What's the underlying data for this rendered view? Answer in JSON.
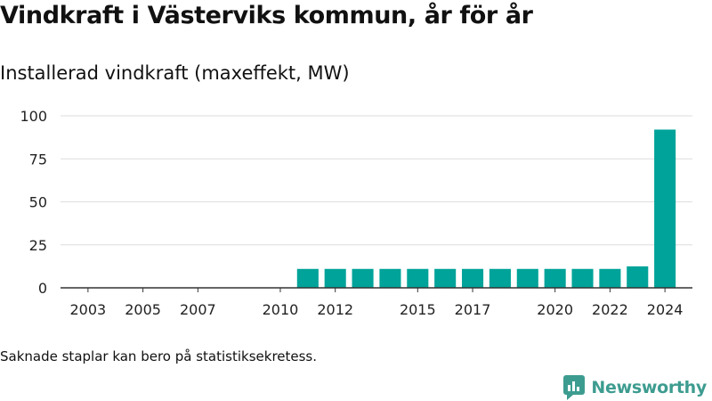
{
  "header": {
    "title": "Vindkraft i Västerviks kommun, år för år",
    "subtitle": "Installerad vindkraft (maxeffekt, MW)"
  },
  "footnote": "Saknade staplar kan bero på statistiksekretess.",
  "brand": {
    "name": "Newsworthy",
    "color": "#3d9c90",
    "icon": "newsworthy-logo-icon"
  },
  "chart_data": {
    "type": "bar",
    "x": [
      2011,
      2012,
      2013,
      2014,
      2015,
      2016,
      2017,
      2018,
      2019,
      2020,
      2021,
      2022,
      2023,
      2024
    ],
    "values": [
      11,
      11,
      11,
      11,
      11,
      11,
      11,
      11,
      11,
      11,
      11,
      11,
      12.5,
      92
    ],
    "xlim": [
      2002,
      2025
    ],
    "x_ticks": [
      "2003",
      "2005",
      "2007",
      "2010",
      "2012",
      "2015",
      "2017",
      "2020",
      "2022",
      "2024"
    ],
    "ylim": [
      0,
      100
    ],
    "y_ticks": [
      "0",
      "25",
      "50",
      "75",
      "100"
    ],
    "bar_color": "#00a399",
    "grid": true,
    "legend": "none"
  }
}
